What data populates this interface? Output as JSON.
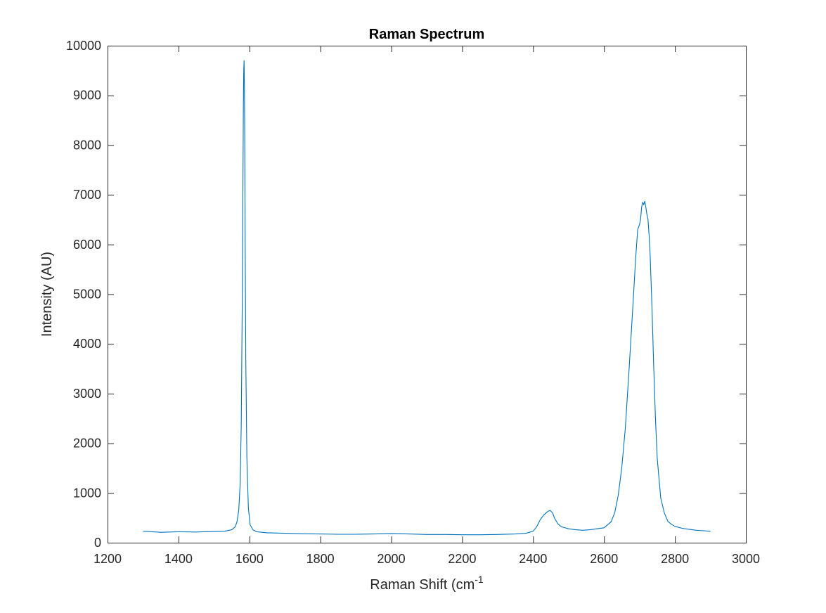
{
  "chart_data": {
    "type": "line",
    "title": "Raman Spectrum",
    "xlabel": "Raman Shift (cm",
    "xlabel_superscript": "-1",
    "ylabel": "Intensity (AU)",
    "xlim": [
      1200,
      3000
    ],
    "ylim": [
      0,
      10000
    ],
    "xticks": [
      1200,
      1400,
      1600,
      1800,
      2000,
      2200,
      2400,
      2600,
      2800,
      3000
    ],
    "yticks": [
      0,
      1000,
      2000,
      3000,
      4000,
      5000,
      6000,
      7000,
      8000,
      9000,
      10000
    ],
    "xtick_labels": [
      "1200",
      "1400",
      "1600",
      "1800",
      "2000",
      "2200",
      "2400",
      "2600",
      "2800",
      "3000"
    ],
    "ytick_labels": [
      "0",
      "1000",
      "2000",
      "3000",
      "4000",
      "5000",
      "6000",
      "7000",
      "8000",
      "9000",
      "10000"
    ],
    "grid": false,
    "box": true,
    "series": [
      {
        "color": "#0072BD",
        "x": [
          1300,
          1350,
          1400,
          1450,
          1500,
          1530,
          1550,
          1560,
          1565,
          1570,
          1574,
          1577,
          1580,
          1582,
          1583,
          1584,
          1585,
          1586,
          1587,
          1588,
          1590,
          1593,
          1597,
          1602,
          1610,
          1620,
          1650,
          1700,
          1750,
          1800,
          1850,
          1900,
          1950,
          2000,
          2050,
          2100,
          2150,
          2200,
          2250,
          2300,
          2350,
          2380,
          2400,
          2410,
          2420,
          2430,
          2440,
          2448,
          2455,
          2460,
          2470,
          2480,
          2500,
          2520,
          2540,
          2560,
          2580,
          2600,
          2620,
          2630,
          2640,
          2650,
          2660,
          2670,
          2680,
          2690,
          2695,
          2700,
          2703,
          2706,
          2709,
          2712,
          2715,
          2718,
          2721,
          2724,
          2727,
          2730,
          2735,
          2740,
          2745,
          2750,
          2760,
          2770,
          2780,
          2790,
          2800,
          2820,
          2840,
          2860,
          2880,
          2900
        ],
        "y": [
          230,
          210,
          220,
          215,
          225,
          230,
          260,
          320,
          420,
          650,
          1200,
          2400,
          5000,
          7500,
          8800,
          9500,
          9700,
          9200,
          8000,
          6200,
          3600,
          1700,
          700,
          360,
          260,
          220,
          200,
          190,
          180,
          175,
          170,
          170,
          175,
          185,
          175,
          165,
          165,
          160,
          160,
          165,
          175,
          190,
          230,
          320,
          460,
          560,
          620,
          650,
          600,
          500,
          380,
          320,
          280,
          260,
          250,
          260,
          280,
          300,
          420,
          600,
          950,
          1500,
          2300,
          3400,
          4600,
          5800,
          6300,
          6400,
          6500,
          6750,
          6850,
          6800,
          6870,
          6750,
          6600,
          6500,
          6200,
          5800,
          4800,
          3600,
          2500,
          1700,
          900,
          600,
          430,
          370,
          330,
          290,
          270,
          250,
          240,
          230
        ]
      }
    ]
  }
}
